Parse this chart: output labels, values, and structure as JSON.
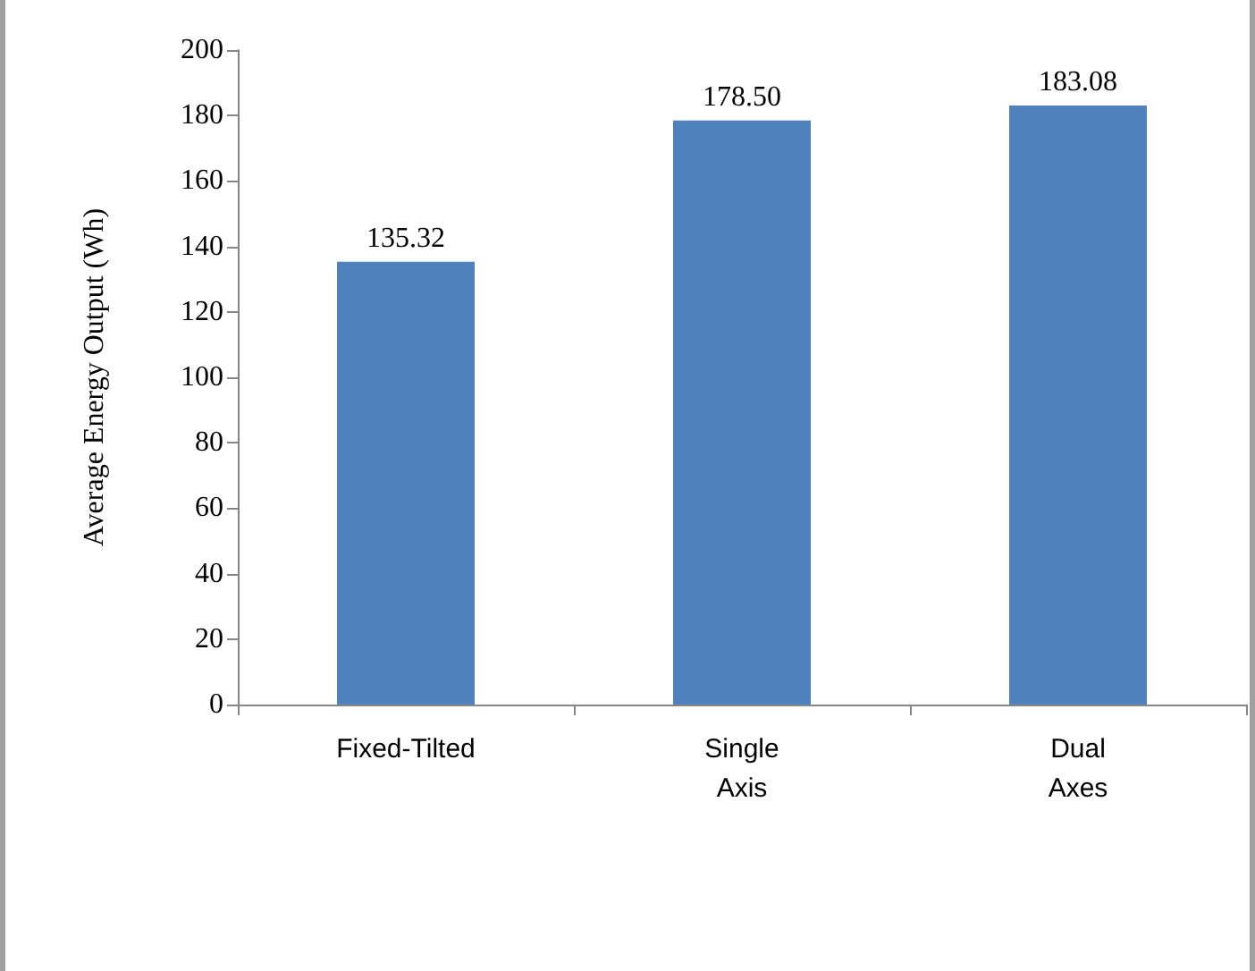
{
  "chart_data": {
    "type": "bar",
    "ylabel": "Average Energy Output (Wh)",
    "categories": [
      "Fixed-Tilted",
      "Single\nAxis",
      "Dual\nAxes"
    ],
    "values": [
      135.32,
      178.5,
      183.08
    ],
    "value_labels": [
      "135.32",
      "178.50",
      "183.08"
    ],
    "color": "#4f81bd",
    "ylim": [
      0,
      200
    ],
    "yticks": [
      0,
      20,
      40,
      60,
      80,
      100,
      120,
      140,
      160,
      180,
      200
    ],
    "grid": false
  }
}
